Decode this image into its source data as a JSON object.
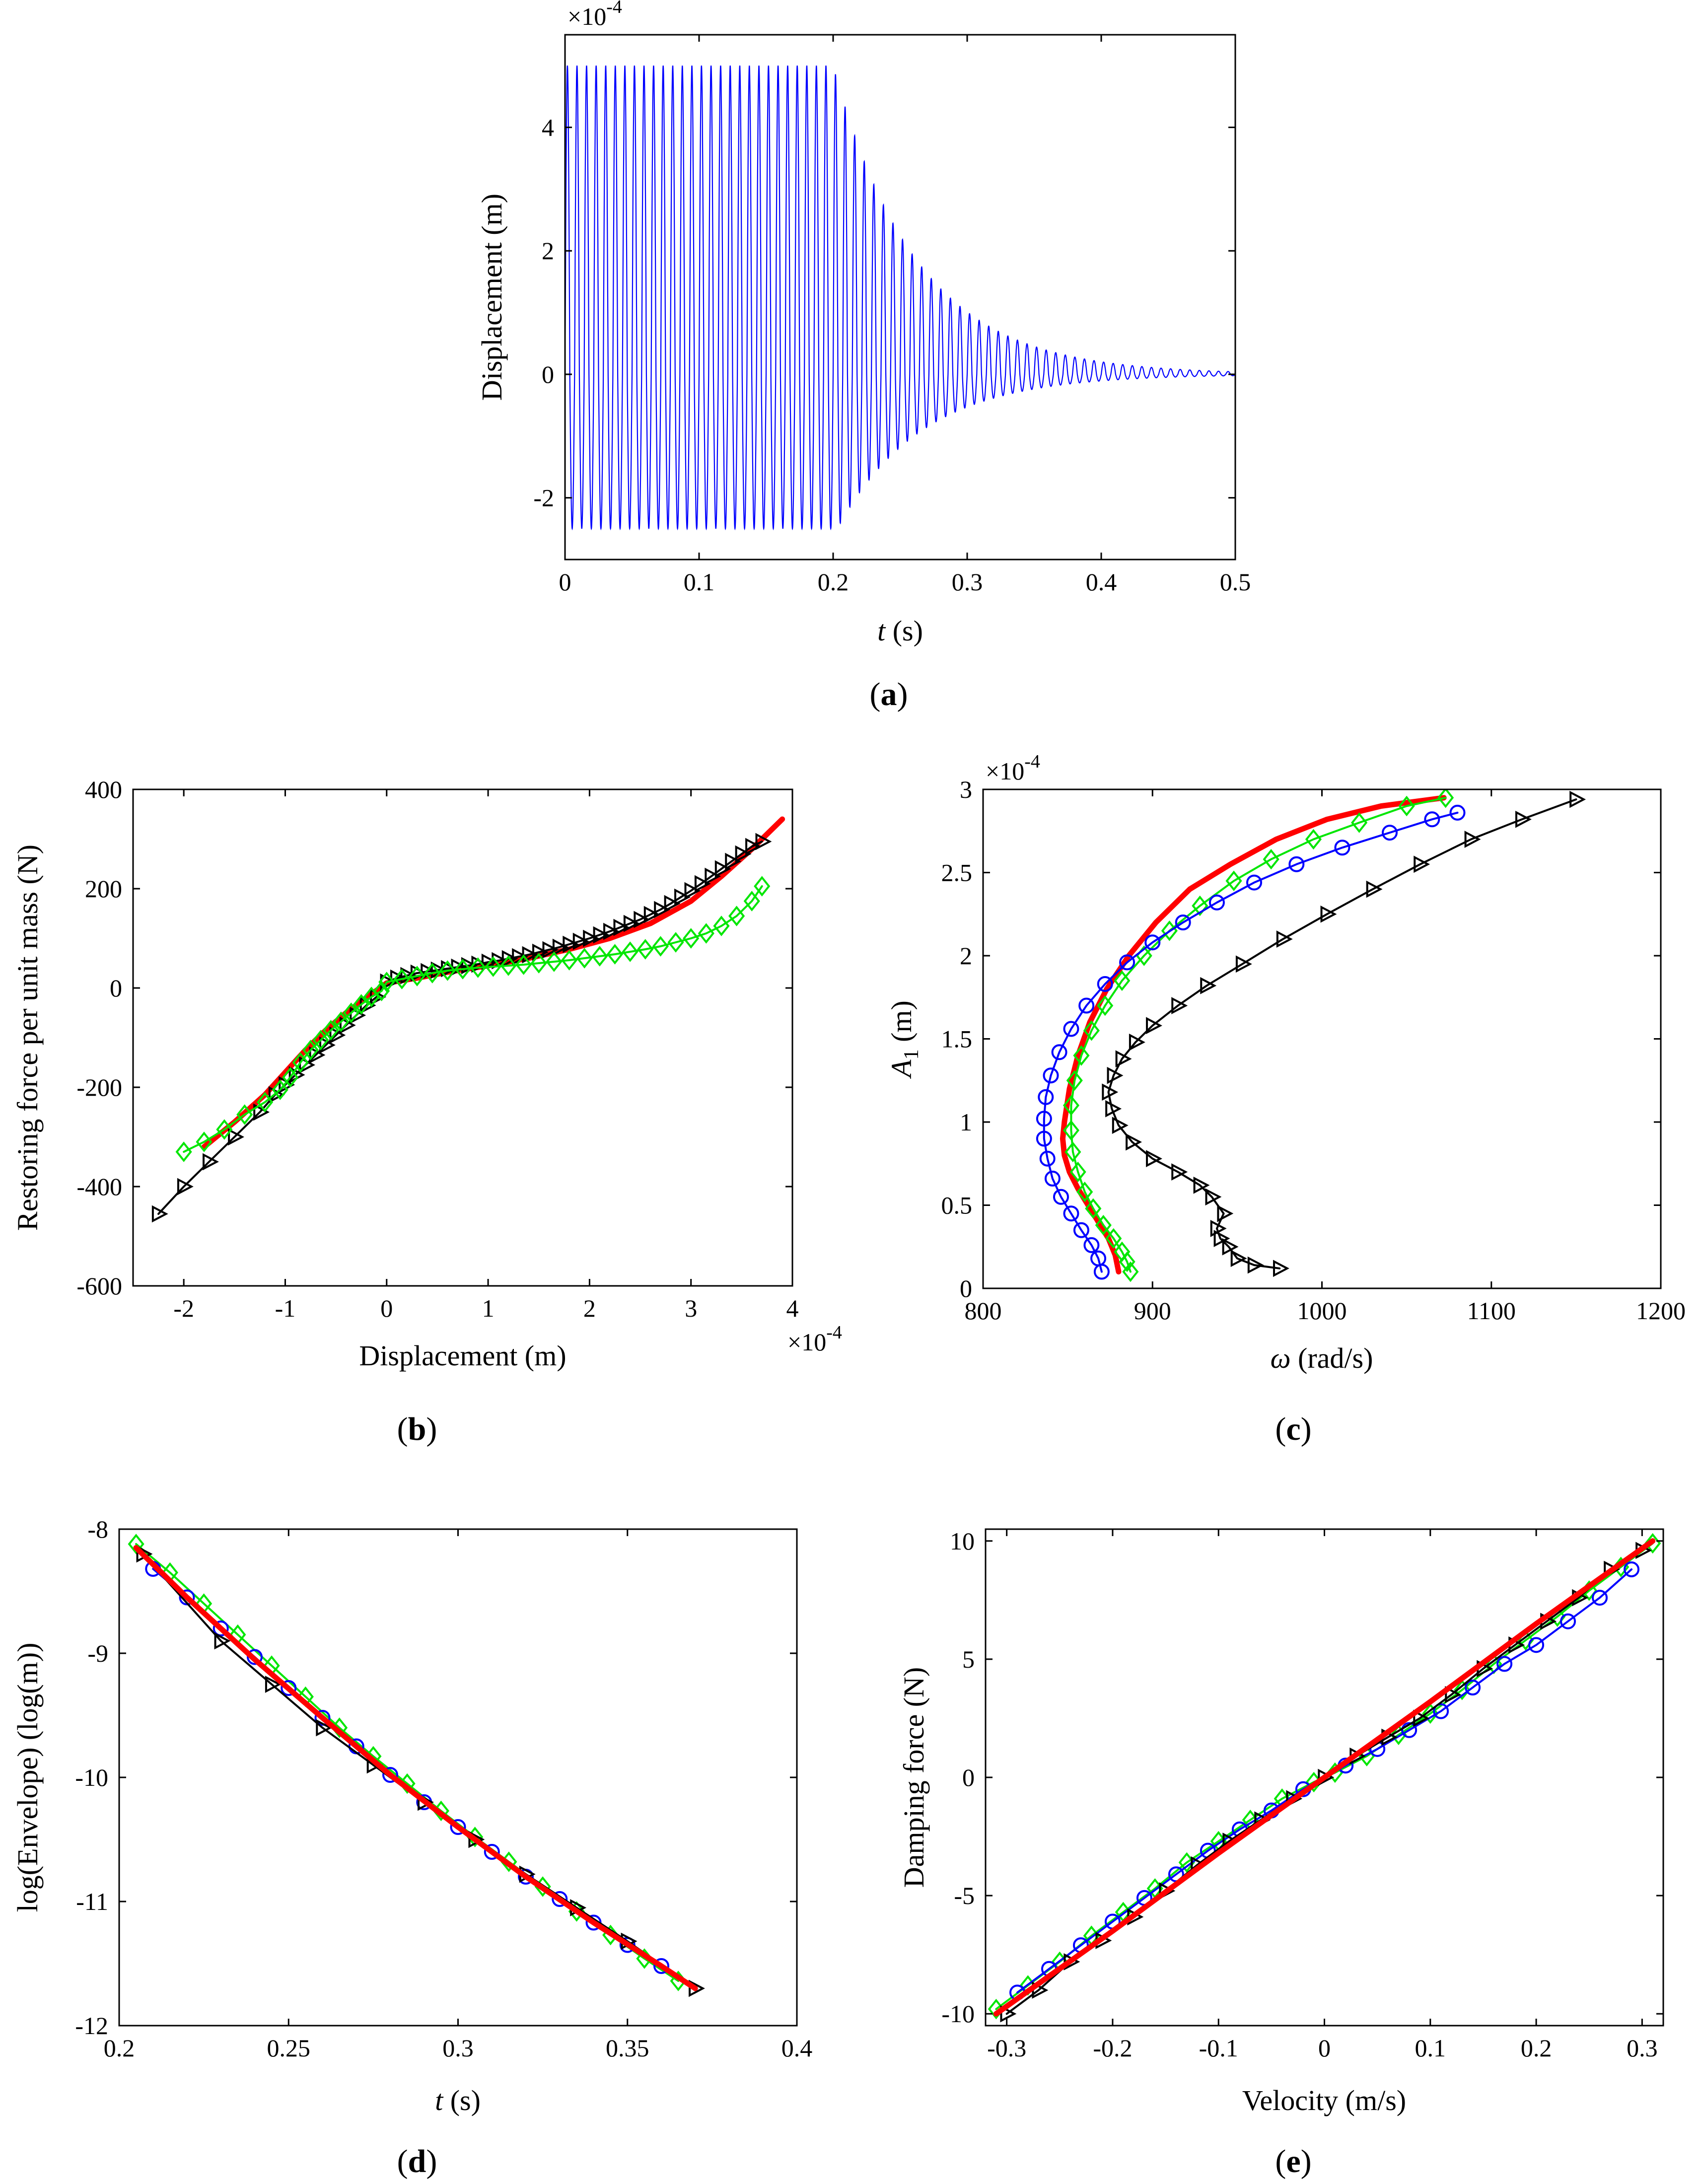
{
  "colors": {
    "blue": "#0000ff",
    "green": "#00e600",
    "red": "#ff0000",
    "black": "#000000"
  },
  "chart_data": [
    {
      "panel": "a",
      "type": "line",
      "caption": {
        "open": "(",
        "letter": "a",
        "close": ")"
      },
      "xlabel": {
        "symbol": "t",
        "unit": "(s)"
      },
      "ylabel": "Displacement  (m)",
      "y_exponent": {
        "base": "×10",
        "power": "-4"
      },
      "xlim": [
        0,
        0.5
      ],
      "ylim": [
        -3,
        5.5
      ],
      "xticks": [
        0,
        0.1,
        0.2,
        0.3,
        0.4,
        0.5
      ],
      "xtick_labels": [
        "0",
        "0.1",
        "0.2",
        "0.3",
        "0.4",
        "0.5"
      ],
      "yticks": [
        -2,
        0,
        2,
        4
      ],
      "ytick_labels": [
        "-2",
        "0",
        "2",
        "4"
      ],
      "series": [
        {
          "color": "blue",
          "signal": {
            "frequency_hz": 140,
            "t_end": 0.5,
            "forced_until": 0.2,
            "upper_amplitude": 5.0,
            "lower_amplitude": 2.5,
            "decay_rate": 16
          }
        }
      ]
    },
    {
      "panel": "b",
      "type": "line",
      "caption": {
        "open": "(",
        "letter": "b",
        "close": ")"
      },
      "xlabel": "Displacement (m)",
      "ylabel": "Restoring force per unit mass (N)",
      "x_exponent": {
        "base": "×10",
        "power": "-4"
      },
      "xlim": [
        -2.5,
        4
      ],
      "ylim": [
        -600,
        400
      ],
      "xticks": [
        -2,
        -1,
        0,
        1,
        2,
        3,
        4
      ],
      "xtick_labels": [
        "-2",
        "-1",
        "0",
        "1",
        "2",
        "3",
        "4"
      ],
      "yticks": [
        -600,
        -400,
        -200,
        0,
        200,
        400
      ],
      "ytick_labels": [
        "-600",
        "-400",
        "-200",
        "0",
        "200",
        "400"
      ],
      "series": [
        {
          "color": "red",
          "marker": "none",
          "x": [
            -1.8,
            -1.5,
            -1.2,
            -1.0,
            -0.8,
            -0.6,
            -0.4,
            -0.2,
            0,
            0.3,
            0.6,
            1.0,
            1.4,
            1.8,
            2.2,
            2.6,
            3.0,
            3.3,
            3.6,
            3.9
          ],
          "y": [
            -320,
            -270,
            -215,
            -170,
            -125,
            -85,
            -50,
            -20,
            10,
            20,
            32,
            45,
            60,
            78,
            100,
            130,
            175,
            225,
            280,
            340
          ]
        },
        {
          "color": "black",
          "marker": "triangle-right",
          "x": [
            -2.25,
            -2.0,
            -1.75,
            -1.5,
            -1.25,
            -1.1,
            -1.0,
            -0.9,
            -0.8,
            -0.7,
            -0.6,
            -0.5,
            -0.4,
            -0.3,
            -0.2,
            -0.1,
            0,
            0.1,
            0.2,
            0.3,
            0.4,
            0.5,
            0.6,
            0.7,
            0.8,
            0.9,
            1.0,
            1.1,
            1.2,
            1.3,
            1.4,
            1.5,
            1.6,
            1.7,
            1.8,
            1.9,
            2.0,
            2.1,
            2.2,
            2.3,
            2.4,
            2.5,
            2.6,
            2.7,
            2.8,
            2.9,
            3.0,
            3.1,
            3.2,
            3.3,
            3.4,
            3.5,
            3.6,
            3.7
          ],
          "y": [
            -455,
            -400,
            -350,
            -300,
            -250,
            -215,
            -195,
            -175,
            -155,
            -135,
            -115,
            -95,
            -75,
            -55,
            -35,
            -18,
            12,
            20,
            25,
            30,
            33,
            36,
            39,
            42,
            45,
            48,
            52,
            55,
            59,
            63,
            67,
            72,
            77,
            82,
            88,
            94,
            100,
            107,
            114,
            122,
            130,
            138,
            148,
            158,
            170,
            183,
            196,
            210,
            225,
            240,
            255,
            270,
            285,
            295
          ]
        },
        {
          "color": "green",
          "marker": "diamond",
          "x": [
            -2.0,
            -1.8,
            -1.6,
            -1.4,
            -1.2,
            -1.05,
            -0.95,
            -0.85,
            -0.75,
            -0.65,
            -0.55,
            -0.45,
            -0.35,
            -0.25,
            -0.15,
            -0.05,
            0,
            0.15,
            0.3,
            0.45,
            0.6,
            0.75,
            0.9,
            1.05,
            1.2,
            1.35,
            1.5,
            1.65,
            1.8,
            1.95,
            2.1,
            2.25,
            2.4,
            2.55,
            2.7,
            2.85,
            3.0,
            3.15,
            3.3,
            3.45,
            3.6,
            3.7
          ],
          "y": [
            -330,
            -310,
            -285,
            -255,
            -230,
            -205,
            -180,
            -150,
            -125,
            -105,
            -85,
            -68,
            -50,
            -33,
            -18,
            -6,
            12,
            18,
            24,
            30,
            35,
            38,
            41,
            43,
            45,
            47,
            50,
            53,
            56,
            60,
            64,
            68,
            73,
            78,
            84,
            92,
            100,
            110,
            125,
            145,
            175,
            205
          ]
        }
      ]
    },
    {
      "panel": "c",
      "type": "line",
      "caption": {
        "open": "(",
        "letter": "c",
        "close": ")"
      },
      "xlabel": {
        "symbol": "ω",
        "unit": "(rad/s)"
      },
      "ylabel": {
        "symbol": "A",
        "sub": "1",
        "unit": "(m)"
      },
      "y_exponent": {
        "base": "×10",
        "power": "-4"
      },
      "xlim": [
        800,
        1200
      ],
      "ylim": [
        0,
        3
      ],
      "xticks": [
        800,
        900,
        1000,
        1100,
        1200
      ],
      "xtick_labels": [
        "800",
        "900",
        "1000",
        "1100",
        "1200"
      ],
      "yticks": [
        0,
        0.5,
        1,
        1.5,
        2,
        2.5,
        3
      ],
      "ytick_labels": [
        "0",
        "0.5",
        "1",
        "1.5",
        "2",
        "2.5",
        "3"
      ],
      "series": [
        {
          "color": "red",
          "marker": "none",
          "x": [
            880,
            878,
            874,
            868,
            862,
            856,
            851,
            848,
            847,
            848,
            851,
            856,
            863,
            873,
            886,
            902,
            922,
            946,
            973,
            1003,
            1035,
            1072
          ],
          "y": [
            0.1,
            0.2,
            0.3,
            0.4,
            0.5,
            0.6,
            0.7,
            0.8,
            0.9,
            1.0,
            1.2,
            1.4,
            1.6,
            1.8,
            2.0,
            2.2,
            2.4,
            2.55,
            2.7,
            2.82,
            2.9,
            2.95
          ]
        },
        {
          "color": "green",
          "marker": "diamond",
          "x": [
            887,
            885,
            882,
            877,
            871,
            865,
            860,
            856,
            853,
            852,
            852,
            854,
            858,
            864,
            872,
            882,
            895,
            910,
            928,
            948,
            970,
            995,
            1022,
            1050,
            1073
          ],
          "y": [
            0.1,
            0.16,
            0.22,
            0.3,
            0.38,
            0.48,
            0.58,
            0.7,
            0.82,
            0.95,
            1.1,
            1.25,
            1.4,
            1.55,
            1.7,
            1.85,
            2.0,
            2.15,
            2.3,
            2.45,
            2.58,
            2.7,
            2.8,
            2.9,
            2.95
          ]
        },
        {
          "color": "blue",
          "marker": "circle",
          "x": [
            870,
            868,
            864,
            858,
            852,
            846,
            841,
            838,
            836,
            836,
            837,
            840,
            845,
            852,
            861,
            872,
            885,
            900,
            918,
            938,
            960,
            985,
            1012,
            1040,
            1065,
            1080
          ],
          "y": [
            0.1,
            0.18,
            0.26,
            0.35,
            0.45,
            0.55,
            0.66,
            0.78,
            0.9,
            1.02,
            1.15,
            1.28,
            1.42,
            1.56,
            1.7,
            1.83,
            1.96,
            2.08,
            2.2,
            2.32,
            2.44,
            2.55,
            2.65,
            2.74,
            2.82,
            2.86
          ]
        },
        {
          "color": "black",
          "marker": "triangle-right",
          "x": [
            975,
            960,
            950,
            945,
            940,
            938,
            942,
            935,
            928,
            915,
            900,
            888,
            880,
            876,
            874,
            877,
            882,
            890,
            900,
            915,
            932,
            953,
            977,
            1003,
            1030,
            1058,
            1088,
            1118,
            1150
          ],
          "y": [
            0.12,
            0.14,
            0.18,
            0.25,
            0.3,
            0.36,
            0.45,
            0.55,
            0.62,
            0.7,
            0.78,
            0.88,
            0.98,
            1.08,
            1.18,
            1.28,
            1.38,
            1.48,
            1.58,
            1.7,
            1.82,
            1.95,
            2.1,
            2.25,
            2.4,
            2.55,
            2.7,
            2.82,
            2.94
          ]
        }
      ]
    },
    {
      "panel": "d",
      "type": "line",
      "caption": {
        "open": "(",
        "letter": "d",
        "close": ")"
      },
      "xlabel": {
        "symbol": "t",
        "unit": "(s)"
      },
      "ylabel": "log(Envelope) (log(m))",
      "xlim": [
        0.2,
        0.4
      ],
      "ylim": [
        -12,
        -8
      ],
      "xticks": [
        0.2,
        0.25,
        0.3,
        0.35,
        0.4
      ],
      "xtick_labels": [
        "0.2",
        "0.25",
        "0.3",
        "0.35",
        "0.4"
      ],
      "yticks": [
        -12,
        -11,
        -10,
        -9,
        -8
      ],
      "ytick_labels": [
        "-12",
        "-11",
        "-10",
        "-9",
        "-8"
      ],
      "series": [
        {
          "color": "green",
          "marker": "diamond",
          "x": [
            0.205,
            0.215,
            0.225,
            0.235,
            0.245,
            0.255,
            0.265,
            0.275,
            0.285,
            0.295,
            0.305,
            0.315,
            0.325,
            0.335,
            0.345,
            0.355,
            0.365
          ],
          "y": [
            -8.12,
            -8.35,
            -8.6,
            -8.85,
            -9.1,
            -9.35,
            -9.6,
            -9.83,
            -10.05,
            -10.27,
            -10.48,
            -10.68,
            -10.88,
            -11.08,
            -11.27,
            -11.46,
            -11.64
          ]
        },
        {
          "color": "blue",
          "marker": "circle",
          "x": [
            0.21,
            0.22,
            0.23,
            0.24,
            0.25,
            0.26,
            0.27,
            0.28,
            0.29,
            0.3,
            0.31,
            0.32,
            0.33,
            0.34,
            0.35,
            0.36
          ],
          "y": [
            -8.32,
            -8.55,
            -8.8,
            -9.03,
            -9.28,
            -9.52,
            -9.75,
            -9.98,
            -10.2,
            -10.4,
            -10.6,
            -10.8,
            -10.98,
            -11.17,
            -11.35,
            -11.52
          ]
        },
        {
          "color": "black",
          "marker": "triangle-right",
          "x": [
            0.207,
            0.23,
            0.245,
            0.26,
            0.275,
            0.29,
            0.305,
            0.32,
            0.335,
            0.35,
            0.37
          ],
          "y": [
            -8.2,
            -8.9,
            -9.25,
            -9.6,
            -9.9,
            -10.2,
            -10.5,
            -10.78,
            -11.05,
            -11.32,
            -11.7
          ]
        },
        {
          "color": "red",
          "marker": "none",
          "x": [
            0.205,
            0.22,
            0.24,
            0.26,
            0.28,
            0.3,
            0.32,
            0.34,
            0.36,
            0.37
          ],
          "y": [
            -8.15,
            -8.55,
            -9.05,
            -9.52,
            -9.98,
            -10.4,
            -10.8,
            -11.17,
            -11.52,
            -11.7
          ]
        }
      ]
    },
    {
      "panel": "e",
      "type": "line",
      "caption": {
        "open": "(",
        "letter": "e",
        "close": ")"
      },
      "xlabel": "Velocity (m/s)",
      "ylabel": "Damping force (N)",
      "xlim": [
        -0.32,
        0.32
      ],
      "ylim": [
        -10.5,
        10.5
      ],
      "xticks": [
        -0.3,
        -0.2,
        -0.1,
        0,
        0.1,
        0.2,
        0.3
      ],
      "xtick_labels": [
        "-0.3",
        "-0.2",
        "-0.1",
        "0",
        "0.1",
        "0.2",
        "0.3"
      ],
      "yticks": [
        -10,
        -5,
        0,
        5,
        10
      ],
      "ytick_labels": [
        "-10",
        "-5",
        "0",
        "5",
        "10"
      ],
      "series": [
        {
          "color": "green",
          "marker": "diamond",
          "x": [
            -0.31,
            -0.28,
            -0.25,
            -0.22,
            -0.19,
            -0.16,
            -0.13,
            -0.1,
            -0.07,
            -0.04,
            -0.01,
            0.01,
            0.04,
            0.07,
            0.1,
            0.13,
            0.16,
            0.19,
            0.22,
            0.25,
            0.28,
            0.31
          ],
          "y": [
            -9.8,
            -8.8,
            -7.8,
            -6.7,
            -5.7,
            -4.7,
            -3.6,
            -2.7,
            -1.8,
            -0.9,
            -0.2,
            0.2,
            0.9,
            1.8,
            2.7,
            3.7,
            4.8,
            5.8,
            6.8,
            7.9,
            8.9,
            9.9
          ]
        },
        {
          "color": "blue",
          "marker": "circle",
          "x": [
            -0.29,
            -0.26,
            -0.23,
            -0.2,
            -0.17,
            -0.14,
            -0.11,
            -0.08,
            -0.05,
            -0.02,
            0.02,
            0.05,
            0.08,
            0.11,
            0.14,
            0.17,
            0.2,
            0.23,
            0.26,
            0.29
          ],
          "y": [
            -9.1,
            -8.1,
            -7.1,
            -6.1,
            -5.1,
            -4.1,
            -3.1,
            -2.2,
            -1.4,
            -0.5,
            0.5,
            1.2,
            2.0,
            2.8,
            3.8,
            4.8,
            5.6,
            6.6,
            7.6,
            8.8
          ]
        },
        {
          "color": "black",
          "marker": "triangle-right",
          "x": [
            -0.3,
            -0.27,
            -0.24,
            -0.21,
            -0.18,
            -0.15,
            -0.12,
            -0.09,
            -0.06,
            -0.03,
            0,
            0.03,
            0.06,
            0.09,
            0.12,
            0.15,
            0.18,
            0.21,
            0.24,
            0.27,
            0.3
          ],
          "y": [
            -10.0,
            -9.0,
            -7.8,
            -6.9,
            -5.9,
            -4.8,
            -3.7,
            -2.7,
            -1.8,
            -0.9,
            0.0,
            0.9,
            1.7,
            2.5,
            3.5,
            4.6,
            5.6,
            6.6,
            7.6,
            8.8,
            9.6
          ]
        },
        {
          "color": "red",
          "marker": "none",
          "x": [
            -0.31,
            -0.2,
            -0.1,
            0,
            0.1,
            0.2,
            0.31
          ],
          "y": [
            -10.0,
            -6.5,
            -3.2,
            0.0,
            3.2,
            6.5,
            10.0
          ]
        }
      ]
    }
  ]
}
